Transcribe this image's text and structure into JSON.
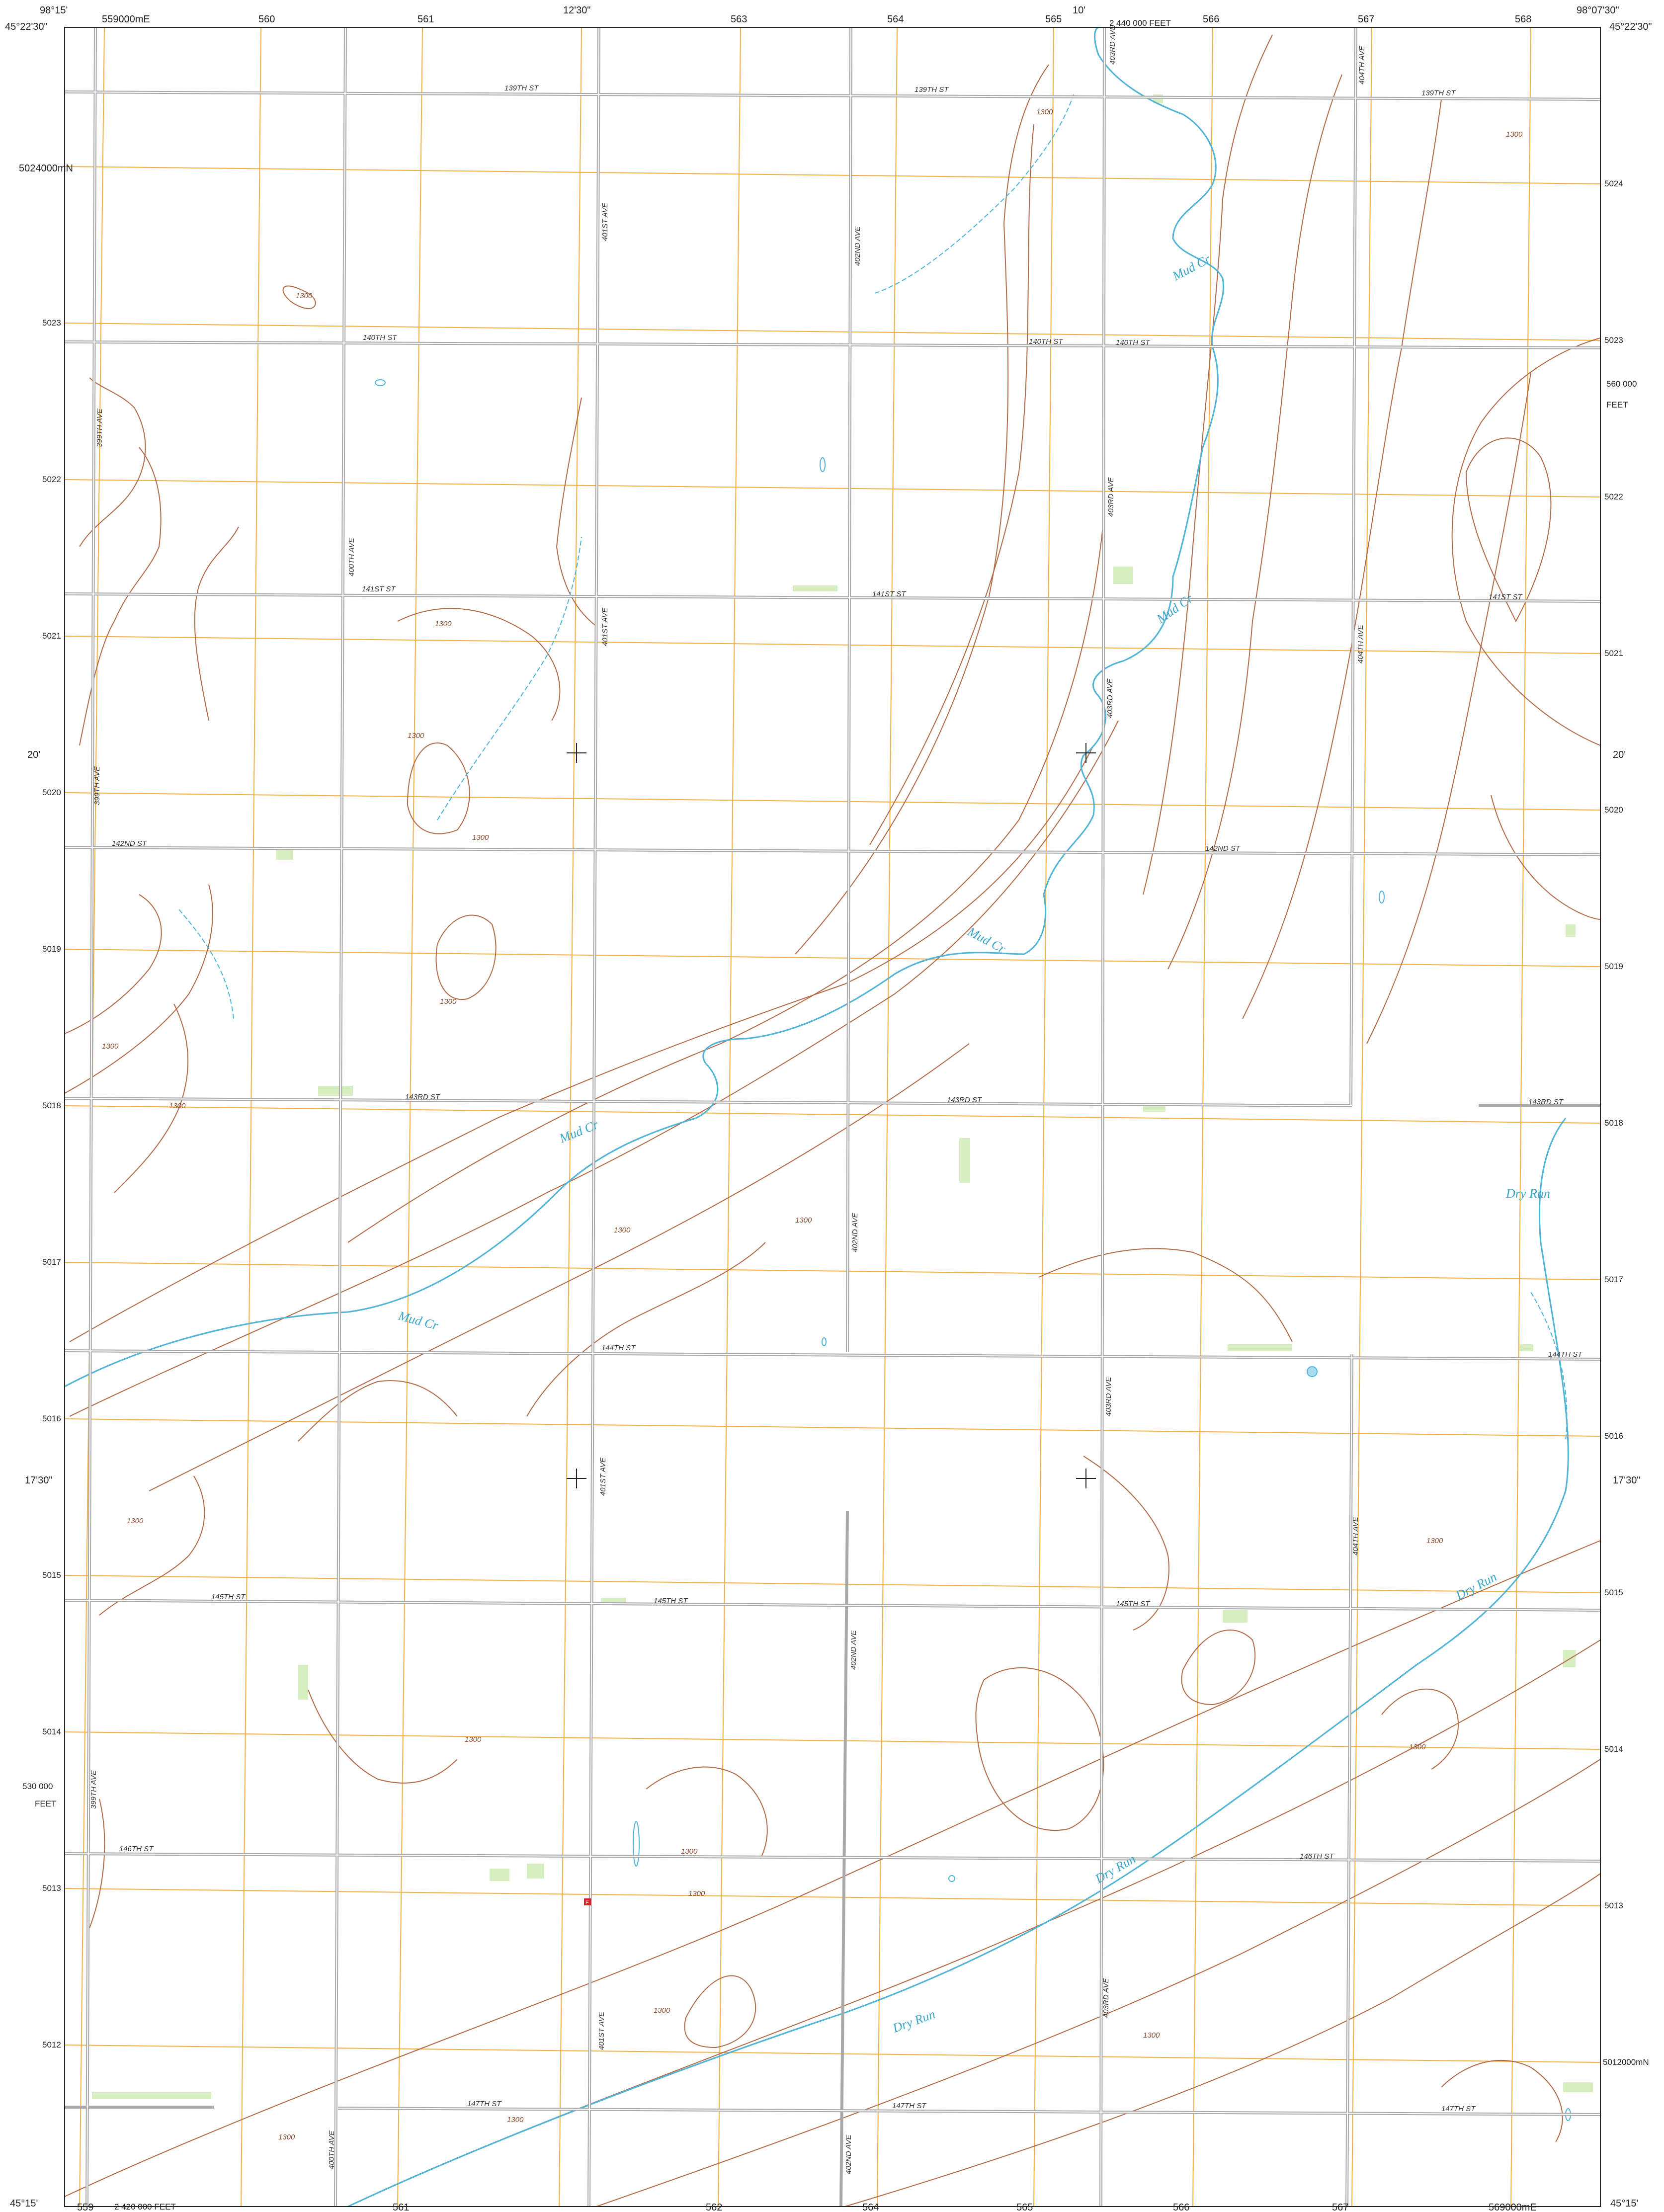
{
  "colors": {
    "road": "#a8a8a8",
    "contour": "#b06a48",
    "water": "#4fb4d8",
    "utm_grid": "#f3b041",
    "vegetation": "#d7efc0",
    "neatline": "#222222"
  },
  "corners": {
    "nw_lon": "98°15'",
    "nw_lat": "45°22'30\"",
    "ne_lon": "98°07'30\"",
    "ne_lat": "45°22'30\"",
    "sw_lat": "45°15'",
    "se_lat": "45°15'"
  },
  "top_marks": {
    "easting_first": "559000mE",
    "eastings": [
      "560",
      "561",
      "563",
      "564",
      "565",
      "566",
      "567",
      "568"
    ],
    "minute_1": "12'30\"",
    "minute_2": "10'",
    "feet": "2 440 000  FEET"
  },
  "bottom_marks": {
    "eastings": [
      "559",
      "561",
      "562",
      "564",
      "565",
      "566",
      "567"
    ],
    "feet": "2 420 000  FEET",
    "easting_last": "569000mE"
  },
  "left_marks": {
    "northing_first": "5024000mN",
    "northings": [
      "5023",
      "5022",
      "5021",
      "5020",
      "5019",
      "5018",
      "5017",
      "5016",
      "5015",
      "5014",
      "5013",
      "5012"
    ],
    "minute_1": "20'",
    "minute_2": "17'30\"",
    "feet": "530 000",
    "feet_unit": "FEET"
  },
  "right_marks": {
    "northings": [
      "5024",
      "5023",
      "5022",
      "5021",
      "5020",
      "5019",
      "5018",
      "5017",
      "5016",
      "5015",
      "5014",
      "5013"
    ],
    "northing_last": "5012000mN",
    "minute_1": "20'",
    "minute_2": "17'30\"",
    "feet": "560 000",
    "feet_unit": "FEET"
  },
  "streets": {
    "s139_a": "139TH ST",
    "s139_b": "139TH ST",
    "s139_c": "139TH ST",
    "s140_a": "140TH ST",
    "s140_b": "140TH ST",
    "s140_c": "140TH ST",
    "s141_a": "141ST ST",
    "s141_b": "141ST ST",
    "s141_c": "141ST ST",
    "s142_a": "142ND ST",
    "s142_b": "142ND ST",
    "s143_a": "143RD ST",
    "s143_b": "143RD ST",
    "s143_c": "143RD ST",
    "s144_a": "144TH ST",
    "s144_b": "144TH ST",
    "s145_a": "145TH ST",
    "s145_b": "145TH ST",
    "s145_c": "145TH ST",
    "s146_a": "146TH ST",
    "s146_b": "146TH ST",
    "s147_a": "147TH ST",
    "s147_b": "147TH ST",
    "s147_c": "147TH ST"
  },
  "avenues": {
    "a399_a": "399TH AVE",
    "a399_b": "399TH AVE",
    "a399_c": "399TH AVE",
    "a400_a": "400TH AVE",
    "a400_b": "400TH AVE",
    "a401_a": "401ST AVE",
    "a401_b": "401ST AVE",
    "a401_c": "401ST AVE",
    "a401_d": "401ST AVE",
    "a402_a": "402ND AVE",
    "a402_b": "402ND AVE",
    "a402_c": "402ND AVE",
    "a402_d": "402ND AVE",
    "a403_a": "403RD AVE",
    "a403_b": "403RD AVE",
    "a403_c": "403RD AVE",
    "a403_d": "403RD AVE",
    "a403_e": "403RD AVE",
    "a404_a": "404TH AVE",
    "a404_b": "404TH AVE",
    "a404_c": "404TH AVE"
  },
  "water": {
    "mud_1": "Mud Cr",
    "mud_2": "Mud Cr",
    "mud_3": "Mud Cr",
    "mud_4": "Mud Cr",
    "mud_5": "Mud Cr",
    "dry_1": "Dry Run",
    "dry_2": "Dry Run",
    "dry_3": "Dry Run",
    "dry_4": "Dry Run"
  },
  "contour_value": "1300",
  "poi_symbol": "F"
}
